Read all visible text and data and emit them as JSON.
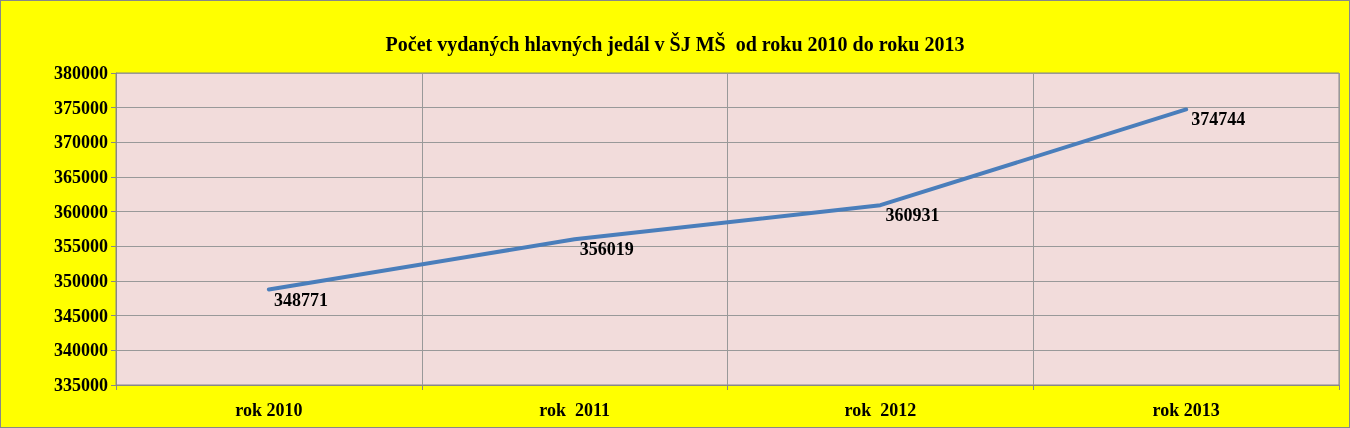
{
  "chart_data": {
    "type": "line",
    "title": "Počet vydaných hlavných jedál v ŠJ MŠ  od roku 2010 do roku 2013",
    "categories": [
      "rok 2010",
      "rok  2011",
      "rok  2012",
      "rok 2013"
    ],
    "series": [
      {
        "color": "#4a7ebb",
        "values": [
          348771,
          356019,
          360931,
          374744
        ]
      }
    ],
    "ylim": [
      335000,
      380000
    ],
    "yticks": [
      335000,
      340000,
      345000,
      350000,
      355000,
      360000,
      365000,
      370000,
      375000,
      380000
    ],
    "grid": true,
    "data_labels": true,
    "marker": "none",
    "line_style": "solid"
  }
}
